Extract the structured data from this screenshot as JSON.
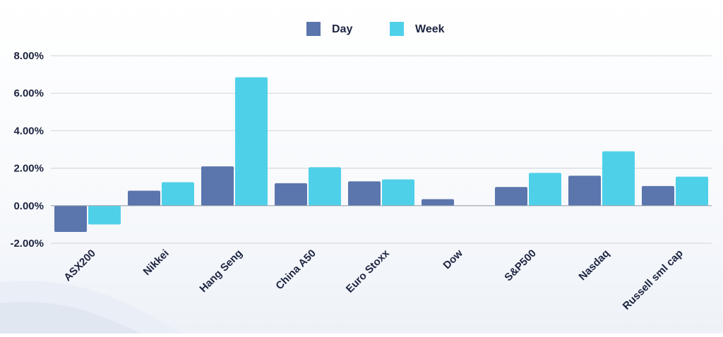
{
  "chart_data": {
    "type": "bar",
    "categories": [
      "ASX200",
      "Nikkei",
      "Hang Seng",
      "China A50",
      "Euro Stoxx",
      "Dow",
      "S&P500",
      "Nasdaq",
      "Russell sml cap"
    ],
    "series": [
      {
        "name": "Day",
        "color": "#5b75ad",
        "values": [
          -1.4,
          0.8,
          2.1,
          1.2,
          1.3,
          0.35,
          1.0,
          1.6,
          1.05
        ]
      },
      {
        "name": "Week",
        "color": "#4fd0e9",
        "values": [
          -1.0,
          1.25,
          6.85,
          2.05,
          1.4,
          0.0,
          1.75,
          2.9,
          1.55
        ]
      }
    ],
    "ylim": [
      -2,
      8
    ],
    "yticks": [
      -2,
      0,
      2,
      4,
      6,
      8
    ],
    "ytick_labels": [
      "-2.00%",
      "0.00%",
      "2.00%",
      "4.00%",
      "6.00%",
      "8.00%"
    ],
    "grid": true,
    "legend_position": "top-center",
    "title": "",
    "xlabel": "",
    "ylabel": ""
  }
}
